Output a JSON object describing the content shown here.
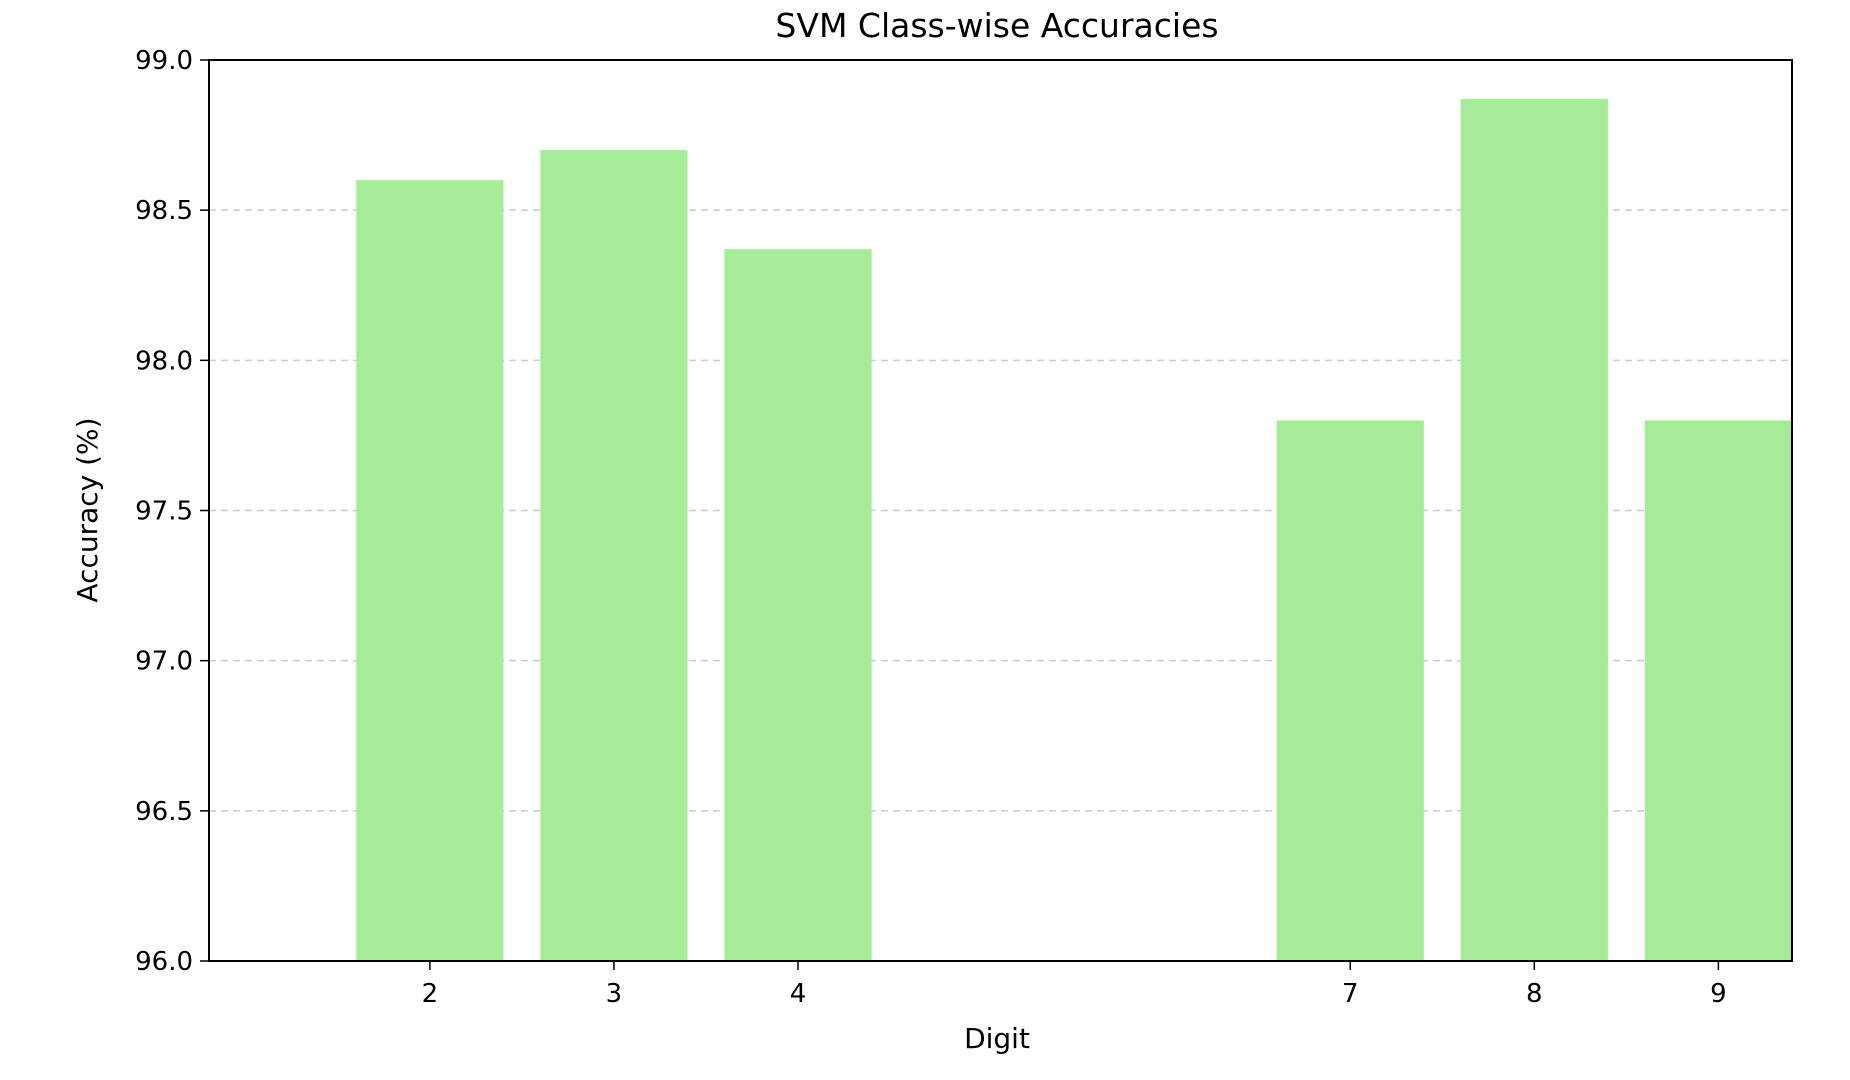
{
  "chart_data": {
    "type": "bar",
    "title": "SVM Class-wise Accuracies",
    "xlabel": "Digit",
    "ylabel": "Accuracy (%)",
    "x": [
      2,
      3,
      4,
      7,
      8,
      9
    ],
    "values": [
      98.6,
      98.7,
      98.37,
      97.8,
      98.87,
      97.8
    ],
    "xticks": [
      "2",
      "3",
      "4",
      "7",
      "8",
      "9"
    ],
    "ylim": [
      96.0,
      99.0
    ],
    "yticks": [
      "96.0",
      "96.5",
      "97.0",
      "97.5",
      "98.0",
      "98.5",
      "99.0"
    ],
    "grid": "y-dashed",
    "bar_color": "#a6eb98",
    "grid_color": "#cccccc"
  }
}
